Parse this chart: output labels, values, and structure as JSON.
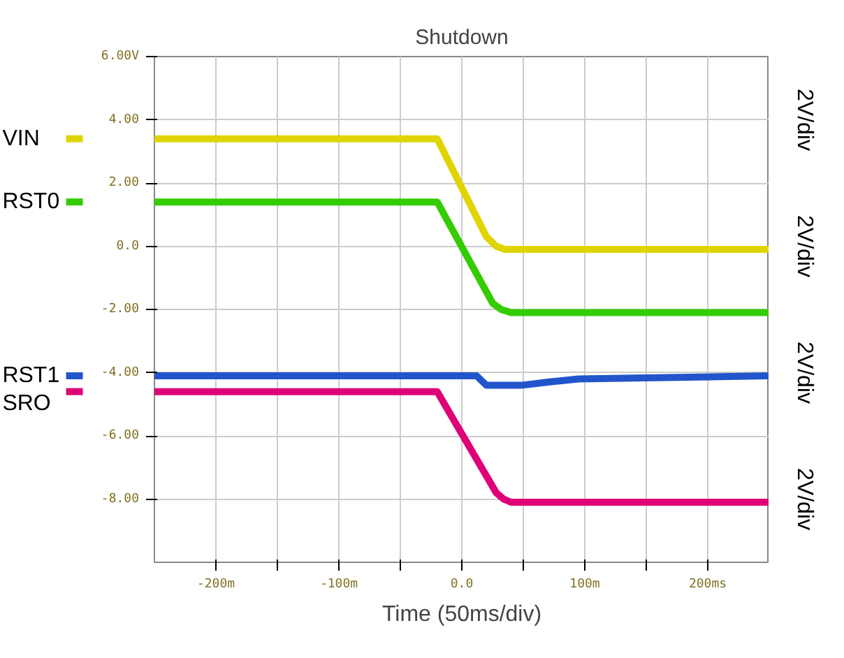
{
  "chart_data": {
    "type": "line",
    "title": "Shutdown",
    "xlabel": "Time (50ms/div)",
    "annotations": [
      "2V/div",
      "2V/div",
      "2V/div",
      "2V/div"
    ],
    "xlim": [
      -250,
      250
    ],
    "xticks": [
      {
        "value": -200,
        "label": "-200m"
      },
      {
        "value": -150,
        "label": null
      },
      {
        "value": -100,
        "label": "-100m"
      },
      {
        "value": -50,
        "label": null
      },
      {
        "value": 0,
        "label": "0.0"
      },
      {
        "value": 50,
        "label": null
      },
      {
        "value": 100,
        "label": "100m"
      },
      {
        "value": 150,
        "label": null
      },
      {
        "value": 200,
        "label": "200ms"
      }
    ],
    "ylim": [
      -10,
      6
    ],
    "yticks": [
      {
        "value": 6,
        "label": "6.00V"
      },
      {
        "value": 4,
        "label": "4.00"
      },
      {
        "value": 2,
        "label": "2.00"
      },
      {
        "value": 0,
        "label": "0.0"
      },
      {
        "value": -2,
        "label": "-2.00"
      },
      {
        "value": -4,
        "label": "-4.00"
      },
      {
        "value": -6,
        "label": "-6.00"
      },
      {
        "value": -8,
        "label": "-8.00"
      }
    ],
    "grid": true,
    "legend": "left",
    "line_style": "solid",
    "series": [
      {
        "name": "VIN",
        "color": "#e0d400",
        "x": [
          -250,
          -20,
          20,
          28,
          35,
          250
        ],
        "values": [
          3.4,
          3.4,
          0.3,
          0.0,
          -0.1,
          -0.1
        ]
      },
      {
        "name": "RST0",
        "color": "#33cc00",
        "x": [
          -250,
          -20,
          25,
          32,
          40,
          250
        ],
        "values": [
          1.4,
          1.4,
          -1.8,
          -2.0,
          -2.1,
          -2.1
        ]
      },
      {
        "name": "RST1",
        "color": "#2255cc",
        "x": [
          -250,
          12,
          20,
          48,
          70,
          95,
          250
        ],
        "values": [
          -4.1,
          -4.1,
          -4.4,
          -4.4,
          -4.3,
          -4.2,
          -4.1
        ]
      },
      {
        "name": "SRO",
        "color": "#dd0077",
        "x": [
          -250,
          -20,
          28,
          34,
          40,
          250
        ],
        "values": [
          -4.6,
          -4.6,
          -7.8,
          -8.0,
          -8.1,
          -8.1
        ]
      }
    ]
  }
}
